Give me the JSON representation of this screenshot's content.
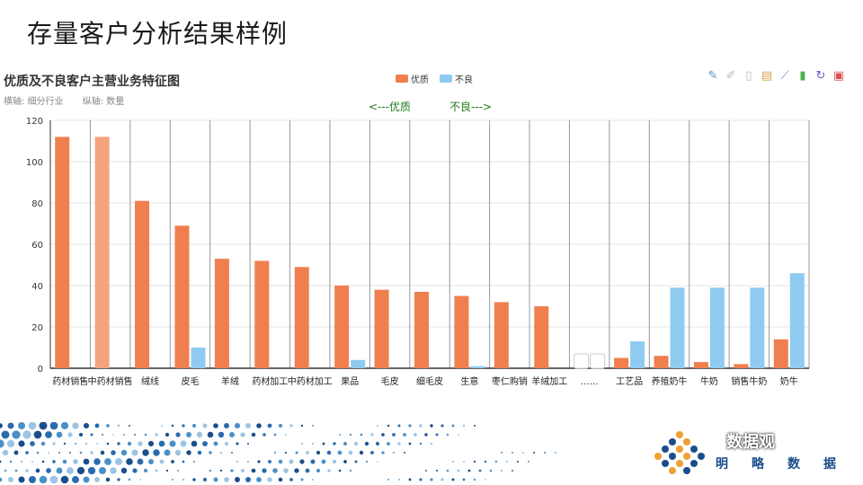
{
  "slide": {
    "title": "存量客户分析结果样例"
  },
  "chart_meta": {
    "title": "优质及不良客户主营业务特征图",
    "subtitle_x": "横轴: 细分行业",
    "subtitle_y": "纵轴: 数量",
    "annotation_left": "<---优质",
    "annotation_right": "不良--->",
    "toolbox_icons": [
      "mark-icon",
      "mark-undo-icon",
      "mark-clear-icon",
      "data-view-icon",
      "line-chart-icon",
      "bar-chart-icon",
      "restore-icon",
      "save-image-icon"
    ]
  },
  "colors": {
    "good": "#f07f4f",
    "good_light": "#f5a37f",
    "bad": "#8fcbf0",
    "axis": "#333333",
    "grid": "#e6e6e6",
    "vgrid": "#444444"
  },
  "chart_data": {
    "type": "bar",
    "title": "优质及不良客户主营业务特征图",
    "xlabel": "细分行业",
    "ylabel": "数量",
    "ylim": [
      0,
      120
    ],
    "yticks": [
      0,
      20,
      40,
      60,
      80,
      100,
      120
    ],
    "legend": [
      "优质",
      "不良"
    ],
    "legend_position": "top-center",
    "grid": true,
    "categories": [
      "药材销售",
      "中药材销售",
      "绒线",
      "皮毛",
      "羊绒",
      "药材加工",
      "中药材加工",
      "果品",
      "毛皮",
      "细毛皮",
      "生意",
      "枣仁购销",
      "羊绒加工",
      "……",
      "工艺品",
      "养殖奶牛",
      "牛奶",
      "销售牛奶",
      "奶牛"
    ],
    "series": [
      {
        "name": "优质",
        "values": [
          112,
          112,
          81,
          69,
          53,
          52,
          49,
          40,
          38,
          37,
          35,
          32,
          30,
          0,
          5,
          6,
          3,
          2,
          14
        ]
      },
      {
        "name": "不良",
        "values": [
          0,
          0,
          0,
          10,
          0,
          0,
          0,
          4,
          0,
          0,
          1,
          0,
          0,
          0,
          13,
          39,
          39,
          39,
          46
        ]
      }
    ]
  },
  "footer": {
    "brand_overlay": "数据观",
    "brand_sub": "明略数据"
  }
}
